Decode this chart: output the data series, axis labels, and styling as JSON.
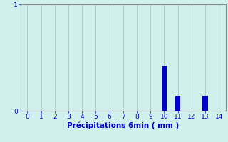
{
  "x_values": [
    0,
    1,
    2,
    3,
    4,
    5,
    6,
    7,
    8,
    9,
    10,
    11,
    12,
    13,
    14
  ],
  "y_values": [
    0,
    0,
    0,
    0,
    0,
    0,
    0,
    0,
    0,
    0,
    0.42,
    0.14,
    0,
    0.14,
    0
  ],
  "bar_color": "#0000cc",
  "background_color": "#cff0ec",
  "grid_color": "#a8c8c4",
  "xlabel": "Précipitations 6min ( mm )",
  "xlabel_color": "#0000cc",
  "tick_color": "#0000cc",
  "spine_color": "#888888",
  "ylim": [
    0,
    1
  ],
  "xlim": [
    -0.5,
    14.5
  ],
  "yticks": [
    0,
    1
  ],
  "xticks": [
    0,
    1,
    2,
    3,
    4,
    5,
    6,
    7,
    8,
    9,
    10,
    11,
    12,
    13,
    14
  ],
  "bar_width": 0.4
}
